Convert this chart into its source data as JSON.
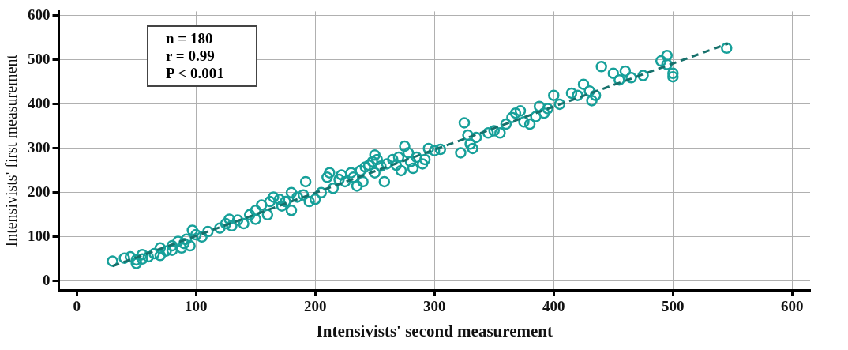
{
  "chart_data": {
    "type": "scatter",
    "xlabel": "Intensivists' second measurement",
    "ylabel": "Intensivists' first measurement",
    "annotations": [
      "n = 180",
      "r = 0.99",
      "P < 0.001"
    ],
    "xlim": [
      -15,
      615
    ],
    "ylim": [
      -20,
      610
    ],
    "xticks": [
      0,
      100,
      200,
      300,
      400,
      500,
      600
    ],
    "yticks": [
      0,
      100,
      200,
      300,
      400,
      500,
      600
    ],
    "grid": true,
    "legend": false,
    "series": [
      {
        "type": "scatter",
        "marker": "circle",
        "color": "#17a09a",
        "x": [
          30,
          40,
          45,
          50,
          50,
          55,
          55,
          60,
          65,
          70,
          70,
          75,
          80,
          80,
          85,
          88,
          90,
          92,
          95,
          97,
          100,
          105,
          110,
          120,
          125,
          128,
          130,
          135,
          140,
          145,
          150,
          150,
          155,
          160,
          162,
          165,
          170,
          172,
          175,
          180,
          180,
          185,
          190,
          192,
          195,
          200,
          205,
          210,
          212,
          215,
          220,
          222,
          225,
          230,
          232,
          235,
          238,
          240,
          242,
          245,
          248,
          250,
          250,
          252,
          255,
          258,
          260,
          265,
          268,
          270,
          272,
          275,
          278,
          280,
          282,
          285,
          290,
          292,
          295,
          300,
          305,
          322,
          325,
          328,
          330,
          332,
          335,
          345,
          350,
          355,
          360,
          365,
          368,
          372,
          375,
          380,
          385,
          388,
          392,
          395,
          400,
          405,
          415,
          420,
          425,
          430,
          432,
          435,
          440,
          450,
          455,
          460,
          465,
          475,
          490,
          495,
          495,
          500,
          500,
          545
        ],
        "values": [
          45,
          52,
          55,
          48,
          40,
          60,
          50,
          55,
          62,
          75,
          58,
          68,
          80,
          70,
          90,
          75,
          85,
          95,
          80,
          115,
          105,
          100,
          112,
          120,
          130,
          140,
          125,
          138,
          130,
          150,
          140,
          160,
          172,
          150,
          180,
          190,
          185,
          170,
          180,
          160,
          200,
          190,
          195,
          225,
          180,
          185,
          200,
          235,
          245,
          210,
          230,
          240,
          225,
          245,
          235,
          215,
          250,
          225,
          258,
          262,
          270,
          285,
          245,
          275,
          260,
          225,
          265,
          275,
          262,
          280,
          250,
          305,
          290,
          270,
          255,
          280,
          265,
          275,
          300,
          295,
          298,
          290,
          358,
          330,
          310,
          300,
          325,
          335,
          340,
          335,
          355,
          370,
          380,
          385,
          360,
          355,
          372,
          395,
          380,
          390,
          420,
          400,
          425,
          420,
          445,
          430,
          408,
          420,
          485,
          470,
          455,
          475,
          460,
          465,
          498,
          510,
          490,
          470,
          462,
          527
        ]
      },
      {
        "type": "line",
        "line_style": "dashed",
        "color": "#16706b",
        "x": [
          30,
          546
        ],
        "values": [
          34,
          537
        ]
      }
    ]
  }
}
